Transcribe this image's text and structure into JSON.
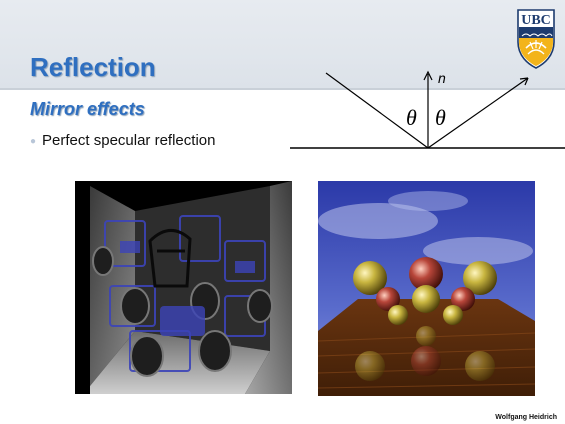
{
  "slide": {
    "title": "Reflection",
    "subtitle": "Mirror effects",
    "bullet": "Perfect specular reflection",
    "credit": "Wolfgang Heidrich"
  },
  "logo": {
    "text": "UBC"
  },
  "diagram": {
    "normal_label": "n",
    "angle_left": "θ",
    "angle_right": "θ"
  },
  "colors": {
    "title_blue": "#2f6fc0",
    "header_band": "#e1e6ec",
    "logo_gold": "#f3b41b",
    "logo_navy": "#1d3b6e"
  },
  "images": {
    "left": "mirror-room-rendering",
    "right": "reflective-spheres-rendering"
  }
}
